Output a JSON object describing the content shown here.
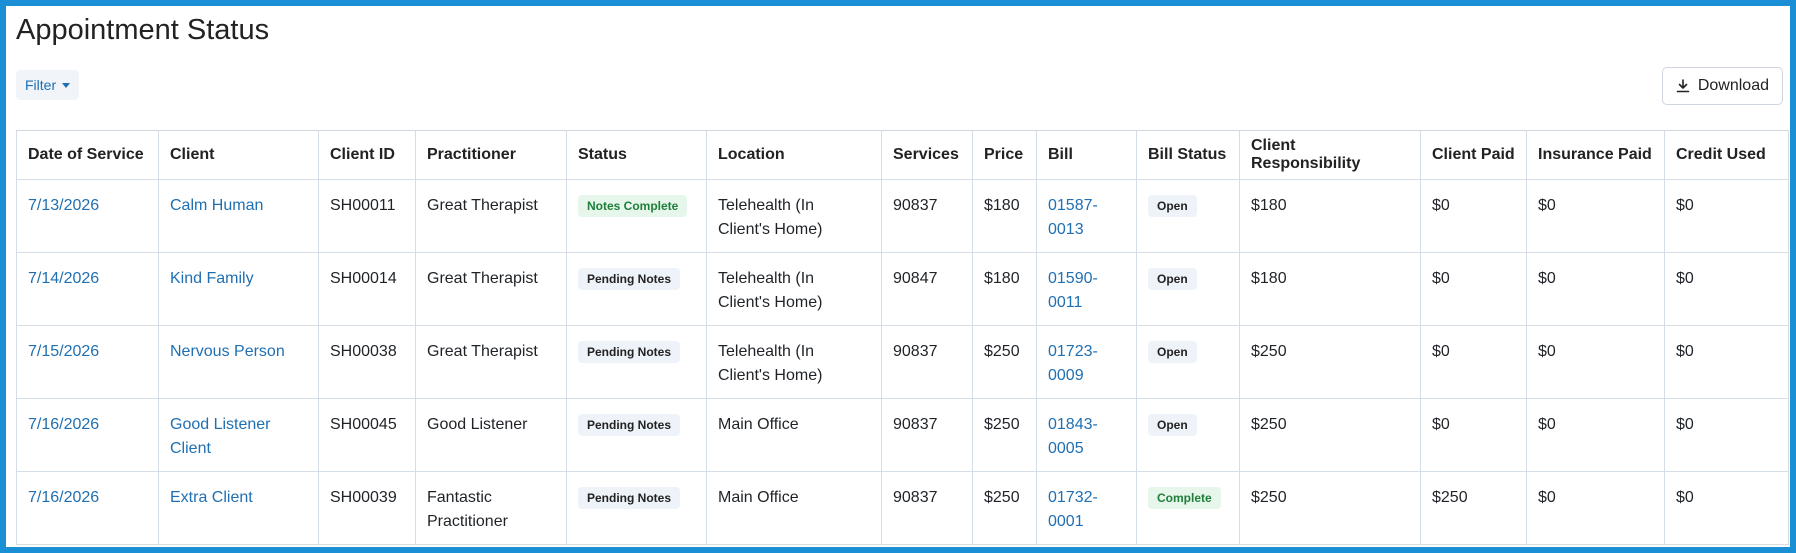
{
  "page": {
    "title": "Appointment Status"
  },
  "toolbar": {
    "filter_label": "Filter",
    "download_label": "Download"
  },
  "colors": {
    "accent": "#1f6fb2",
    "frame": "#1b8fd6",
    "success_text": "#1e7f3a",
    "success_bg": "#e6f6ea",
    "neutral_bg": "#eef3f9"
  },
  "icons": {
    "filter_caret": "chevron-down-icon",
    "download": "download-icon"
  },
  "table": {
    "columns": [
      "Date of Service",
      "Client",
      "Client ID",
      "Practitioner",
      "Status",
      "Location",
      "Services",
      "Price",
      "Bill",
      "Bill Status",
      "Client Responsibility",
      "Client Paid",
      "Insurance Paid",
      "Credit Used"
    ],
    "rows": [
      {
        "date": "7/13/2026",
        "client": "Calm Human",
        "client_id": "SH00011",
        "practitioner": "Great Therapist",
        "status": "Notes Complete",
        "status_type": "success",
        "location": "Telehealth (In Client's Home)",
        "services": "90837",
        "price": "$180",
        "bill": "01587-0013",
        "bill_status": "Open",
        "bill_status_type": "neutral",
        "client_responsibility": "$180",
        "client_paid": "$0",
        "insurance_paid": "$0",
        "credit_used": "$0"
      },
      {
        "date": "7/14/2026",
        "client": "Kind Family",
        "client_id": "SH00014",
        "practitioner": "Great Therapist",
        "status": "Pending Notes",
        "status_type": "neutral",
        "location": "Telehealth (In Client's Home)",
        "services": "90847",
        "price": "$180",
        "bill": "01590-0011",
        "bill_status": "Open",
        "bill_status_type": "neutral",
        "client_responsibility": "$180",
        "client_paid": "$0",
        "insurance_paid": "$0",
        "credit_used": "$0"
      },
      {
        "date": "7/15/2026",
        "client": "Nervous Person",
        "client_id": "SH00038",
        "practitioner": "Great Therapist",
        "status": "Pending Notes",
        "status_type": "neutral",
        "location": "Telehealth (In Client's Home)",
        "services": "90837",
        "price": "$250",
        "bill": "01723-0009",
        "bill_status": "Open",
        "bill_status_type": "neutral",
        "client_responsibility": "$250",
        "client_paid": "$0",
        "insurance_paid": "$0",
        "credit_used": "$0"
      },
      {
        "date": "7/16/2026",
        "client": "Good Listener Client",
        "client_id": "SH00045",
        "practitioner": "Good Listener",
        "status": "Pending Notes",
        "status_type": "neutral",
        "location": "Main Office",
        "services": "90837",
        "price": "$250",
        "bill": "01843-0005",
        "bill_status": "Open",
        "bill_status_type": "neutral",
        "client_responsibility": "$250",
        "client_paid": "$0",
        "insurance_paid": "$0",
        "credit_used": "$0"
      },
      {
        "date": "7/16/2026",
        "client": "Extra Client",
        "client_id": "SH00039",
        "practitioner": "Fantastic Practitioner",
        "status": "Pending Notes",
        "status_type": "neutral",
        "location": "Main Office",
        "services": "90837",
        "price": "$250",
        "bill": "01732-0001",
        "bill_status": "Complete",
        "bill_status_type": "success",
        "client_responsibility": "$250",
        "client_paid": "$250",
        "insurance_paid": "$0",
        "credit_used": "$0"
      }
    ]
  }
}
